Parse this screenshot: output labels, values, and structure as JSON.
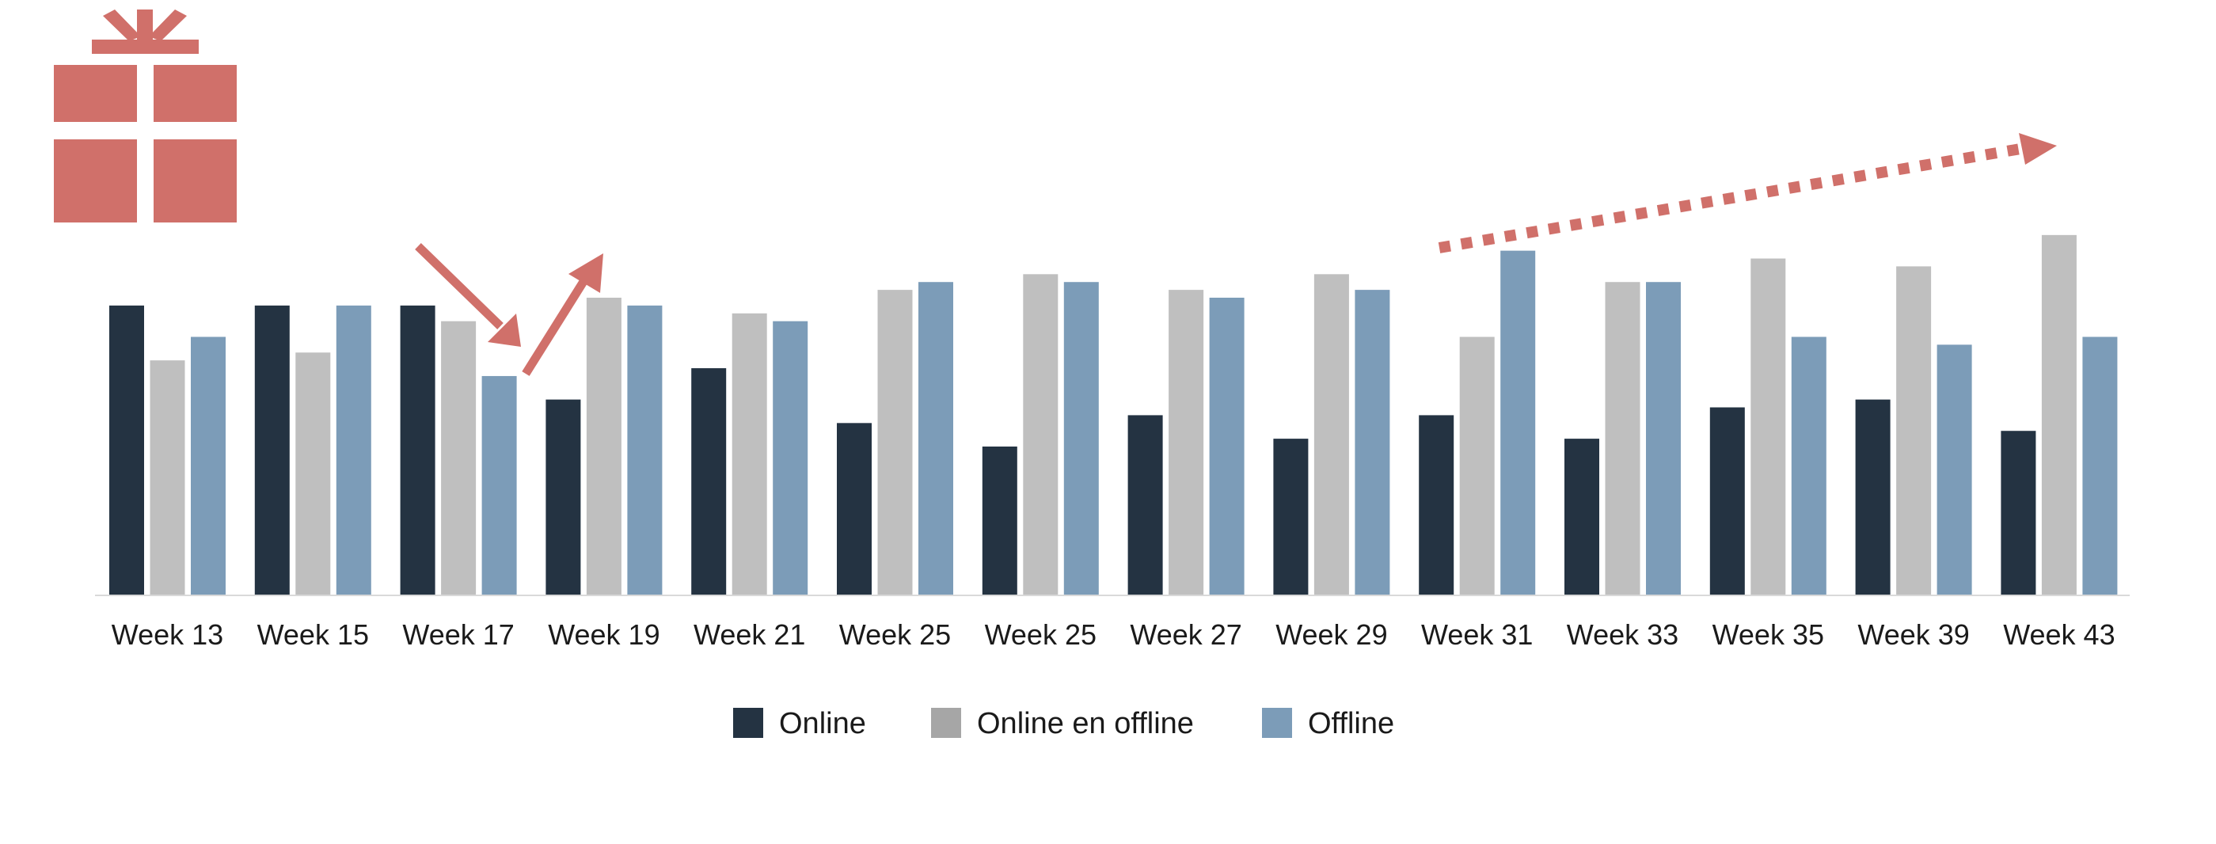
{
  "chart_data": {
    "type": "bar",
    "categories": [
      "Week 13",
      "Week 15",
      "Week 17",
      "Week 19",
      "Week 21",
      "Week 25",
      "Week 25",
      "Week 27",
      "Week 29",
      "Week 31",
      "Week 33",
      "Week 35",
      "Week 39",
      "Week 43"
    ],
    "series": [
      {
        "name": "Online",
        "color": "#243342",
        "values": [
          37,
          37,
          37,
          25,
          29,
          22,
          19,
          23,
          20,
          23,
          20,
          24,
          25,
          21
        ]
      },
      {
        "name": "Online en offline",
        "color": "#bfbfbf",
        "values": [
          30,
          31,
          35,
          38,
          36,
          39,
          41,
          39,
          41,
          33,
          40,
          43,
          42,
          46
        ]
      },
      {
        "name": "Offline",
        "color": "#7c9cb8",
        "values": [
          33,
          37,
          28,
          37,
          35,
          40,
          40,
          38,
          39,
          44,
          40,
          33,
          32,
          33
        ]
      }
    ],
    "ylim": [
      0,
      76
    ],
    "legend_position": "bottom",
    "legend_swatches": [
      "#243342",
      "#a6a6a6",
      "#7c9cb8"
    ],
    "grid": false,
    "annotations": [
      "gift-icon",
      "down-arrow",
      "up-arrow",
      "dotted-trend-arrow"
    ],
    "accent_color": "#d0706a",
    "label_color": "#1a1a1a"
  }
}
